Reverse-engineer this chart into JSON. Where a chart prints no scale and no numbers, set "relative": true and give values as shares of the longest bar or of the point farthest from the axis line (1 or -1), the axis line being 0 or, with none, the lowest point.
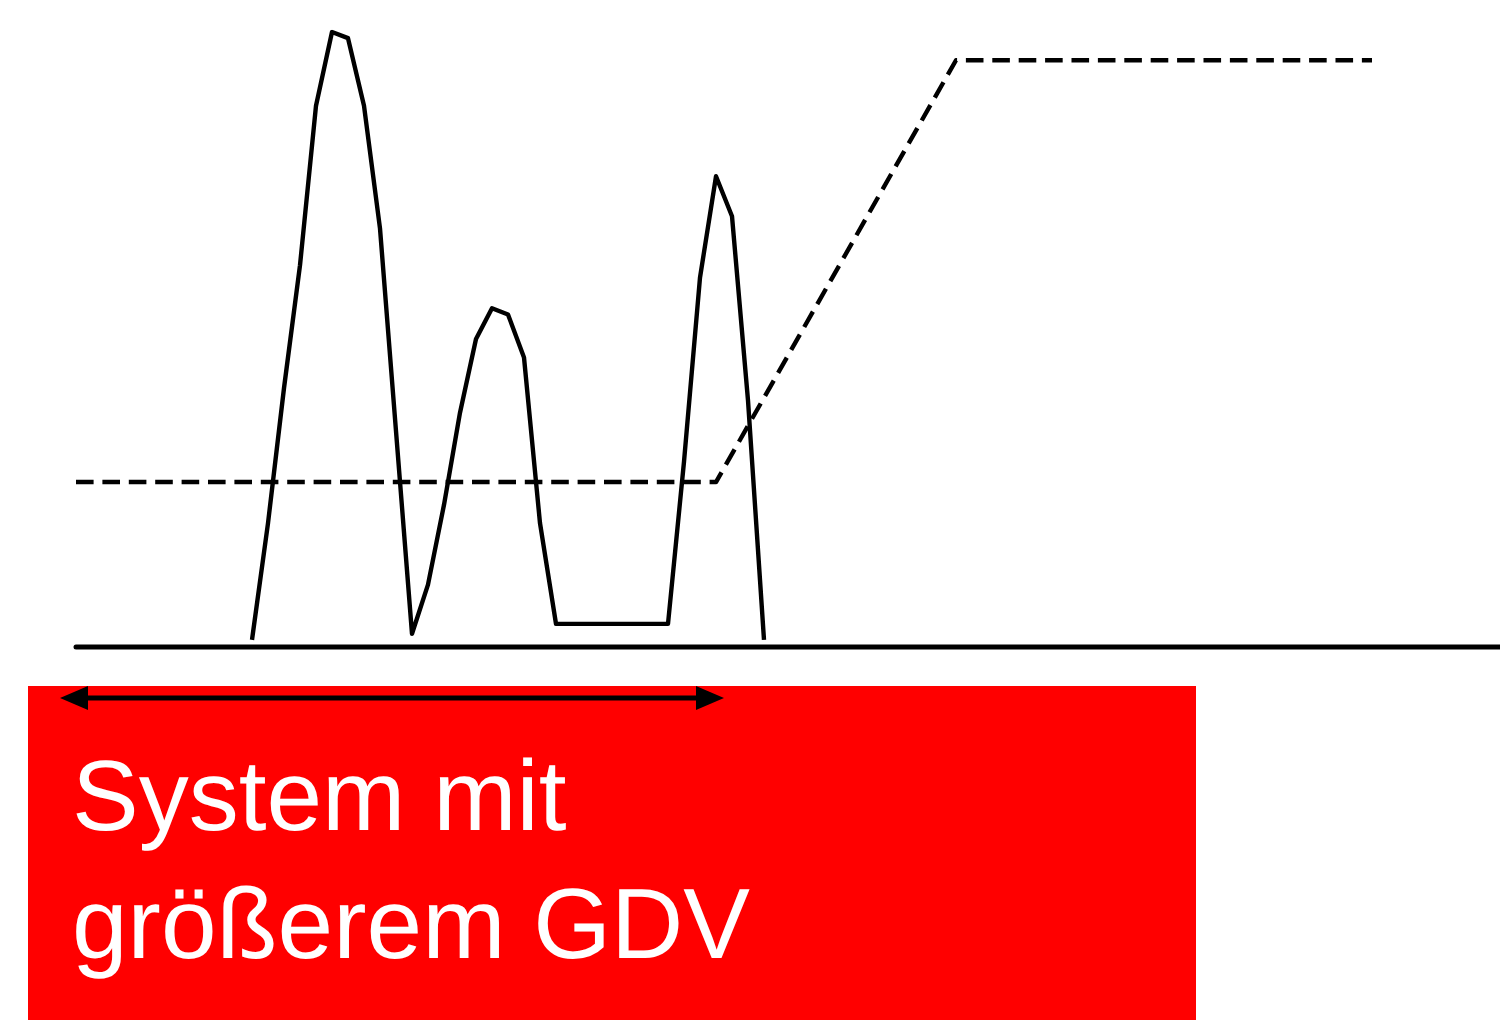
{
  "chart_data": {
    "type": "line",
    "relative": true,
    "tick_labels": false,
    "grid": false,
    "categories": [
      null,
      null,
      null,
      null,
      null,
      null,
      null,
      null,
      null,
      null,
      null,
      null,
      null,
      null,
      null,
      null,
      null,
      null,
      null,
      null,
      null,
      null,
      null,
      null,
      null,
      null,
      null,
      null,
      null,
      null,
      null,
      null,
      null,
      null,
      null,
      null,
      null,
      null,
      null,
      null,
      null,
      null,
      null,
      null,
      null,
      null,
      null,
      null,
      null,
      null,
      null,
      null,
      null,
      null,
      null,
      null,
      null,
      null,
      null,
      null,
      null,
      null,
      null,
      null,
      null,
      null,
      null,
      null,
      null,
      null,
      null,
      null,
      null,
      null,
      null,
      null,
      null,
      null,
      null,
      null,
      null,
      null,
      null,
      null,
      null,
      null,
      null,
      null,
      null,
      null
    ],
    "series": [
      {
        "color": "#000000",
        "line_style": "solid",
        "values": [
          null,
          null,
          null,
          null,
          null,
          null,
          null,
          null,
          null,
          null,
          null,
          0.01,
          0.2,
          0.42,
          0.62,
          0.88,
          1,
          0.99,
          0.88,
          0.68,
          0.35,
          0.02,
          0.1,
          0.23,
          0.38,
          0.5,
          0.55,
          0.54,
          0.47,
          0.2,
          0.036,
          0.036,
          0.036,
          0.036,
          0.036,
          0.036,
          0.036,
          0.036,
          0.3,
          0.6,
          0.765,
          0.7,
          0.4,
          0.01,
          null,
          null,
          null,
          null,
          null,
          null,
          null,
          null,
          null,
          null,
          null,
          null,
          null,
          null,
          null,
          null,
          null,
          null,
          null,
          null,
          null,
          null,
          null,
          null,
          null,
          null,
          null,
          null,
          null,
          null,
          null,
          null,
          null,
          null,
          null,
          null,
          null,
          null,
          null,
          null,
          null,
          null,
          null,
          null,
          null,
          null
        ]
      },
      {
        "color": "#000000",
        "line_style": "dashed",
        "values": [
          0.267,
          null,
          null,
          null,
          null,
          null,
          null,
          null,
          null,
          null,
          null,
          null,
          null,
          null,
          null,
          null,
          null,
          null,
          null,
          null,
          null,
          null,
          null,
          null,
          null,
          null,
          null,
          null,
          null,
          null,
          null,
          null,
          null,
          null,
          null,
          null,
          null,
          null,
          null,
          null,
          0.267,
          null,
          null,
          null,
          null,
          null,
          null,
          null,
          null,
          null,
          null,
          null,
          null,
          null,
          null,
          0.954,
          null,
          null,
          null,
          null,
          null,
          null,
          null,
          null,
          null,
          null,
          null,
          null,
          null,
          null,
          null,
          null,
          null,
          null,
          null,
          null,
          null,
          null,
          null,
          null,
          null,
          0.954,
          null,
          null,
          null,
          null,
          null,
          null,
          null,
          null
        ]
      }
    ],
    "annotations": [
      "System mit größerem GDV"
    ]
  }
}
